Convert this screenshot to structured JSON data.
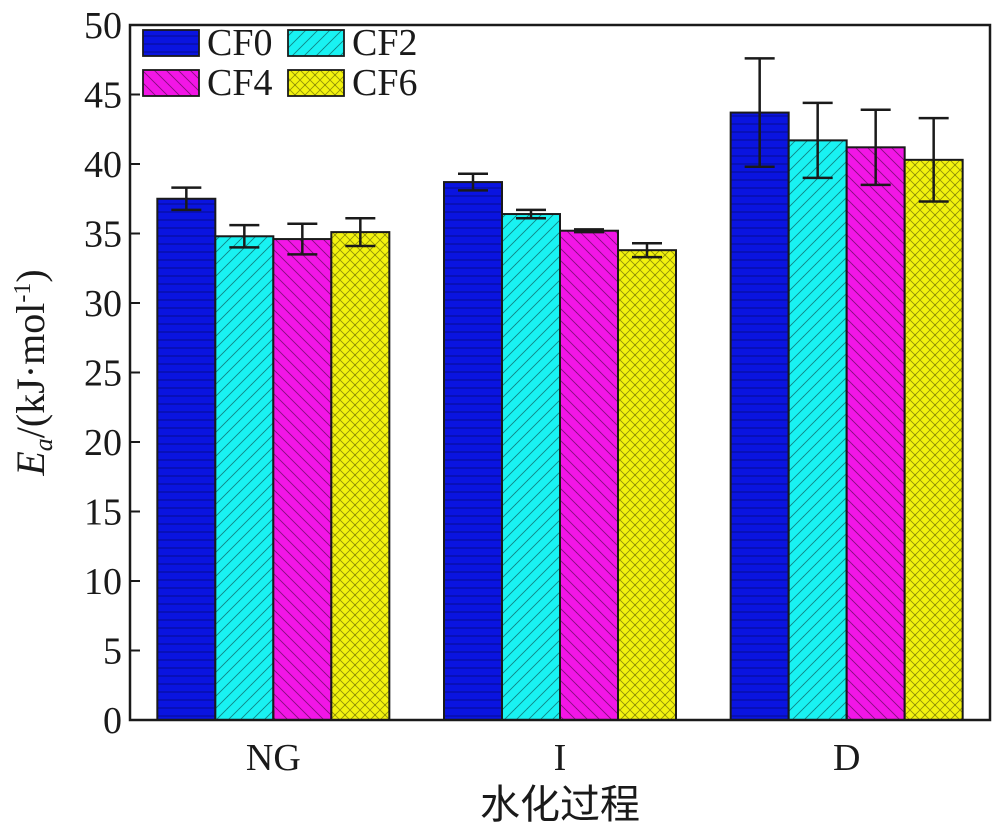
{
  "chart_data": {
    "type": "bar",
    "categories": [
      "NG",
      "I",
      "D"
    ],
    "xlabel": "水化过程",
    "ylabel": {
      "symbol": "E",
      "subscript": "a",
      "unit_prefix": "/(kJ·mol",
      "unit_sup": "-1",
      "unit_suffix": ")"
    },
    "ylim": [
      0,
      50
    ],
    "yticks": [
      0,
      5,
      10,
      15,
      20,
      25,
      30,
      35,
      40,
      45,
      50
    ],
    "legend_position": "top-left",
    "series": [
      {
        "name": "CF0",
        "color": "#0a14e0",
        "pattern": "horizontal-lines",
        "values": [
          37.5,
          38.7,
          43.7
        ],
        "errors": [
          0.8,
          0.6,
          3.9
        ]
      },
      {
        "name": "CF2",
        "color": "#19f2f2",
        "pattern": "diagonal-lines",
        "values": [
          34.8,
          36.4,
          41.7
        ],
        "errors": [
          0.8,
          0.3,
          2.7
        ]
      },
      {
        "name": "CF4",
        "color": "#f216e6",
        "pattern": "back-diagonal-lines",
        "values": [
          34.6,
          35.2,
          41.2
        ],
        "errors": [
          1.1,
          0.1,
          2.7
        ]
      },
      {
        "name": "CF6",
        "color": "#f2f20e",
        "pattern": "cross-hatch",
        "values": [
          35.1,
          33.8,
          40.3
        ],
        "errors": [
          1.0,
          0.5,
          3.0
        ]
      }
    ]
  }
}
